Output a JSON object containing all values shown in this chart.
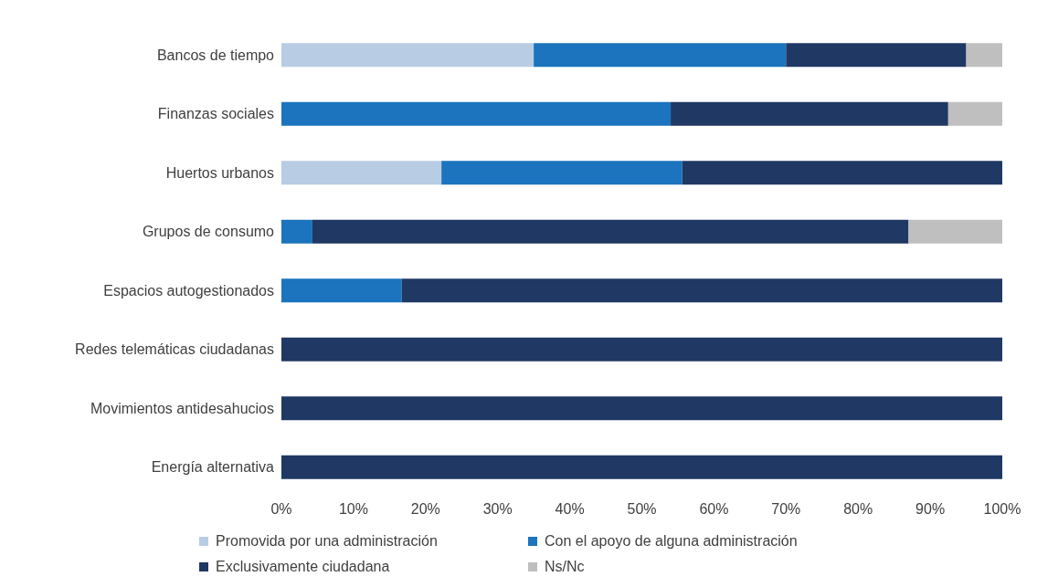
{
  "chart_data": {
    "type": "bar",
    "orientation": "horizontal",
    "stacked": true,
    "categories": [
      "Bancos de tiempo",
      "Finanzas sociales",
      "Huertos urbanos",
      "Grupos de consumo",
      "Espacios autogestionados",
      "Redes telemáticas ciudadanas",
      "Movimientos antidesahucios",
      "Energía alternativa"
    ],
    "series": [
      {
        "name": "Promovida por una administración",
        "color": "#b8cde4",
        "values": [
          35,
          null,
          22.2,
          null,
          null,
          null,
          null,
          null
        ]
      },
      {
        "name": "Con el apoyo de alguna administración",
        "color": "#1b74bd",
        "values": [
          35,
          54,
          33.4,
          4.3,
          16.7,
          null,
          null,
          null
        ]
      },
      {
        "name": "Exclusivamente ciudadana",
        "color": "#1f3864",
        "values": [
          25,
          38.5,
          44.4,
          82.7,
          83.3,
          100,
          100,
          100
        ]
      },
      {
        "name": "Ns/Nc",
        "color": "#bfbfbf",
        "values": [
          5,
          7.5,
          null,
          13,
          null,
          null,
          null,
          null
        ]
      }
    ],
    "xlim": [
      0,
      100
    ],
    "xticks": [
      {
        "value": 0,
        "label": "0%"
      },
      {
        "value": 10,
        "label": "10%"
      },
      {
        "value": 20,
        "label": "20%"
      },
      {
        "value": 30,
        "label": "30%"
      },
      {
        "value": 40,
        "label": "40%"
      },
      {
        "value": 50,
        "label": "50%"
      },
      {
        "value": 60,
        "label": "60%"
      },
      {
        "value": 70,
        "label": "70%"
      },
      {
        "value": 80,
        "label": "80%"
      },
      {
        "value": 90,
        "label": "90%"
      },
      {
        "value": 100,
        "label": "100%"
      }
    ],
    "legend": "bottom",
    "grid": false
  }
}
